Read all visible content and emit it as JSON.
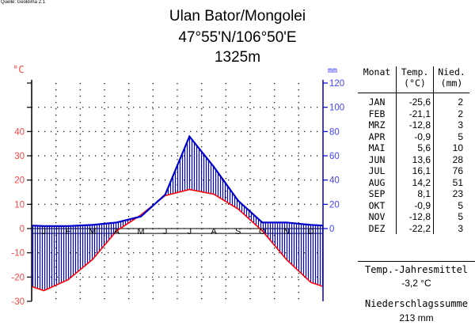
{
  "source": "Quelle: Geoklima 2.1",
  "header": {
    "title": "Ulan Bator/Mongolei",
    "coordinates": "47°55'N/106°50'E",
    "elevation": "1325m"
  },
  "colors": {
    "temperature": "#ff0000",
    "precipitation": "#0000cc",
    "temp_axis": "#ff4444",
    "prec_axis": "#4444ff"
  },
  "chart_data": {
    "type": "line",
    "categories": [
      "J",
      "F",
      "M",
      "A",
      "M",
      "J",
      "J",
      "A",
      "S",
      "O",
      "N",
      "D"
    ],
    "series": [
      {
        "values": [
          -25.6,
          -21.1,
          -12.8,
          -0.9,
          5.6,
          13.6,
          16.1,
          14.2,
          8.1,
          -0.9,
          -12.8,
          -22.2
        ],
        "axis": "left"
      },
      {
        "values": [
          2,
          2,
          3,
          5,
          10,
          28,
          76,
          51,
          23,
          5,
          5,
          3
        ],
        "axis": "right"
      }
    ],
    "left_axis": {
      "unit": "°C",
      "ticks": [
        40,
        30,
        20,
        10,
        0,
        -10,
        -20,
        -30
      ],
      "ylim": [
        -30,
        60
      ]
    },
    "right_axis": {
      "unit": "mm",
      "ticks": [
        120,
        100,
        80,
        60,
        40,
        20,
        0
      ],
      "ylim": [
        -60,
        120
      ]
    },
    "grid": true
  },
  "table": {
    "headers": {
      "month": "Monat",
      "temp": [
        "Temp.",
        "(°C)"
      ],
      "prec": [
        "Nied.",
        "(mm)"
      ]
    },
    "rows": [
      {
        "month": "JAN",
        "temp": "-25,6",
        "prec": "2"
      },
      {
        "month": "FEB",
        "temp": "-21,1",
        "prec": "2"
      },
      {
        "month": "MRZ",
        "temp": "-12,8",
        "prec": "3"
      },
      {
        "month": "APR",
        "temp": "-0,9",
        "prec": "5"
      },
      {
        "month": "MAI",
        "temp": "5,6",
        "prec": "10"
      },
      {
        "month": "JUN",
        "temp": "13,6",
        "prec": "28"
      },
      {
        "month": "JUL",
        "temp": "16,1",
        "prec": "76"
      },
      {
        "month": "AUG",
        "temp": "14,2",
        "prec": "51"
      },
      {
        "month": "SEP",
        "temp": "8,1",
        "prec": "23"
      },
      {
        "month": "OKT",
        "temp": "-0,9",
        "prec": "5"
      },
      {
        "month": "NOV",
        "temp": "-12,8",
        "prec": "5"
      },
      {
        "month": "DEZ",
        "temp": "-22,2",
        "prec": "3"
      }
    ]
  },
  "summary": {
    "annual_temp_label": "Temp.-Jahresmittel",
    "annual_temp_value": "-3,2 °C",
    "annual_prec_label": "Niederschlagssumme",
    "annual_prec_value": "213 mm"
  }
}
